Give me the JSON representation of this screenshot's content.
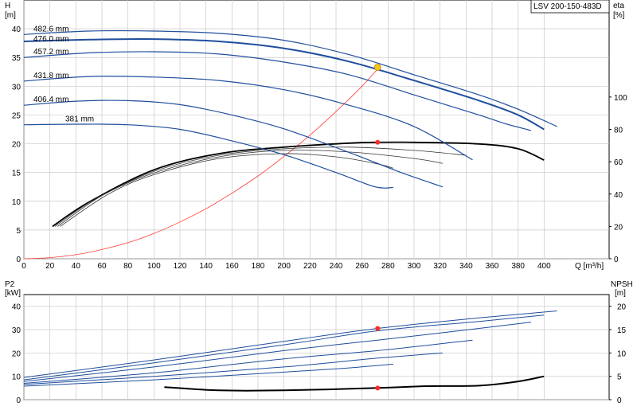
{
  "model_label": "LSV 200-150-483D",
  "chart_data": [
    {
      "type": "line",
      "name": "performance",
      "xlabel": "Q [m³/h]",
      "ylabel_left": "H",
      "ylabel_left_unit": "[m]",
      "ylabel_right": "eta",
      "ylabel_right_unit": "[%]",
      "x_ticks": [
        0,
        20,
        40,
        60,
        80,
        100,
        120,
        140,
        160,
        180,
        200,
        220,
        240,
        260,
        280,
        300,
        320,
        340,
        360,
        380,
        400
      ],
      "y_ticks": [
        0,
        5,
        10,
        15,
        20,
        25,
        30,
        35,
        40
      ],
      "y2_ticks": [
        0,
        20,
        40,
        60,
        80,
        100
      ],
      "xlim": [
        0,
        450
      ],
      "ylim": [
        0,
        45
      ],
      "y2lim": [
        0,
        160
      ],
      "grid": true,
      "head_curves": [
        {
          "label": "482.6 mm",
          "points": [
            [
              0,
              39
            ],
            [
              50,
              39.6
            ],
            [
              100,
              39.6
            ],
            [
              150,
              39.2
            ],
            [
              200,
              38
            ],
            [
              250,
              35.5
            ],
            [
              300,
              32
            ],
            [
              350,
              28.5
            ],
            [
              380,
              26
            ],
            [
              410,
              23
            ]
          ]
        },
        {
          "label": "476.0 mm",
          "points": [
            [
              0,
              37.8
            ],
            [
              50,
              38.1
            ],
            [
              100,
              38.2
            ],
            [
              150,
              37.8
            ],
            [
              200,
              36.6
            ],
            [
              250,
              34.3
            ],
            [
              300,
              31
            ],
            [
              350,
              27.5
            ],
            [
              380,
              25
            ],
            [
              400,
              22.5
            ]
          ]
        },
        {
          "label": "457.2 mm",
          "points": [
            [
              0,
              35
            ],
            [
              50,
              35.8
            ],
            [
              100,
              36
            ],
            [
              150,
              35.6
            ],
            [
              200,
              34.2
            ],
            [
              250,
              32
            ],
            [
              300,
              28.5
            ],
            [
              350,
              25
            ],
            [
              370,
              23.5
            ],
            [
              390,
              22.3
            ]
          ]
        },
        {
          "label": "431.8 mm",
          "points": [
            [
              0,
              30.9
            ],
            [
              50,
              31.7
            ],
            [
              100,
              31.6
            ],
            [
              150,
              31
            ],
            [
              200,
              29.4
            ],
            [
              250,
              26.7
            ],
            [
              300,
              23
            ],
            [
              345,
              17.2
            ]
          ]
        },
        {
          "label": "406.4 mm",
          "points": [
            [
              0,
              26.7
            ],
            [
              40,
              27.4
            ],
            [
              80,
              27.5
            ],
            [
              120,
              26.8
            ],
            [
              160,
              25
            ],
            [
              200,
              22.6
            ],
            [
              250,
              18.5
            ],
            [
              290,
              15
            ],
            [
              322,
              12.5
            ]
          ]
        },
        {
          "label": "381 mm",
          "points": [
            [
              0,
              23.3
            ],
            [
              40,
              23.4
            ],
            [
              80,
              23.3
            ],
            [
              120,
              22.5
            ],
            [
              160,
              20.5
            ],
            [
              200,
              18.1
            ],
            [
              240,
              15
            ],
            [
              270,
              12.5
            ],
            [
              284,
              12.4
            ]
          ]
        }
      ],
      "efficiency_curves": [
        {
          "points": [
            [
              22,
              20
            ],
            [
              50,
              35
            ],
            [
              100,
              55
            ],
            [
              150,
              65
            ],
            [
              200,
              69
            ],
            [
              250,
              71.5
            ],
            [
              272,
              72
            ],
            [
              300,
              72
            ],
            [
              350,
              71
            ],
            [
              380,
              68
            ],
            [
              400,
              61
            ]
          ]
        },
        {
          "points": [
            [
              24,
              20
            ],
            [
              55,
              37
            ],
            [
              100,
              54
            ],
            [
              150,
              64
            ],
            [
              200,
              68
            ],
            [
              250,
              69
            ],
            [
              300,
              67
            ],
            [
              340,
              64
            ]
          ]
        },
        {
          "points": [
            [
              26,
              20
            ],
            [
              60,
              39
            ],
            [
              100,
              53
            ],
            [
              150,
              63
            ],
            [
              200,
              67
            ],
            [
              250,
              66
            ],
            [
              300,
              62
            ],
            [
              322,
              59
            ]
          ]
        },
        {
          "points": [
            [
              28,
              20
            ],
            [
              65,
              40
            ],
            [
              100,
              52
            ],
            [
              150,
              62
            ],
            [
              200,
              65
            ],
            [
              240,
              63
            ],
            [
              270,
              59
            ],
            [
              284,
              56
            ]
          ]
        }
      ],
      "system_curve": [
        [
          0,
          0
        ],
        [
          20,
          0.2
        ],
        [
          40,
          0.7
        ],
        [
          60,
          1.6
        ],
        [
          80,
          2.8
        ],
        [
          100,
          4.4
        ],
        [
          120,
          6.4
        ],
        [
          140,
          8.7
        ],
        [
          160,
          11.4
        ],
        [
          180,
          14.4
        ],
        [
          200,
          17.8
        ],
        [
          220,
          21.5
        ],
        [
          240,
          25.6
        ],
        [
          260,
          30
        ],
        [
          272,
          33
        ]
      ],
      "duty_point": {
        "q": 272,
        "h": 33.3,
        "eta": 72
      }
    },
    {
      "type": "line",
      "name": "power-npsh",
      "ylabel_left": "P2",
      "ylabel_left_unit": "[kW]",
      "ylabel_right": "NPSH",
      "ylabel_right_unit": "[m]",
      "y_ticks": [
        0,
        10,
        20,
        30,
        40
      ],
      "y2_ticks": [
        0,
        5,
        10,
        15,
        20
      ],
      "xlim": [
        0,
        450
      ],
      "ylim": [
        0,
        45
      ],
      "y2lim": [
        0,
        22.5
      ],
      "grid": true,
      "power_curves": [
        {
          "points": [
            [
              0,
              9.5
            ],
            [
              100,
              17
            ],
            [
              200,
              25
            ],
            [
              272,
              30.5
            ],
            [
              350,
              35
            ],
            [
              410,
              38
            ]
          ]
        },
        {
          "points": [
            [
              0,
              8.5
            ],
            [
              100,
              15.8
            ],
            [
              200,
              23.5
            ],
            [
              272,
              29.5
            ],
            [
              350,
              33.5
            ],
            [
              400,
              36.2
            ]
          ]
        },
        {
          "points": [
            [
              0,
              7.8
            ],
            [
              100,
              14
            ],
            [
              200,
              21
            ],
            [
              272,
              25.5
            ],
            [
              350,
              30.5
            ],
            [
              390,
              33.2
            ]
          ]
        },
        {
          "points": [
            [
              0,
              7
            ],
            [
              100,
              11.5
            ],
            [
              200,
              17.5
            ],
            [
              272,
              21
            ],
            [
              345,
              25.5
            ]
          ]
        },
        {
          "points": [
            [
              0,
              6.5
            ],
            [
              100,
              10
            ],
            [
              200,
              14
            ],
            [
              272,
              17.8
            ],
            [
              322,
              20
            ]
          ]
        },
        {
          "points": [
            [
              0,
              5.8
            ],
            [
              100,
              8.5
            ],
            [
              200,
              11.8
            ],
            [
              250,
              13.6
            ],
            [
              284,
              15.2
            ]
          ]
        }
      ],
      "npsh_curve": [
        [
          108,
          2.7
        ],
        [
          150,
          2
        ],
        [
          200,
          2
        ],
        [
          272,
          2.5
        ],
        [
          310,
          2.9
        ],
        [
          350,
          3
        ],
        [
          380,
          3.9
        ],
        [
          400,
          5
        ]
      ],
      "power_duty_point": {
        "q": 272,
        "p2": 30.5
      },
      "npsh_duty_point": {
        "q": 272,
        "npsh": 2.5
      }
    }
  ]
}
